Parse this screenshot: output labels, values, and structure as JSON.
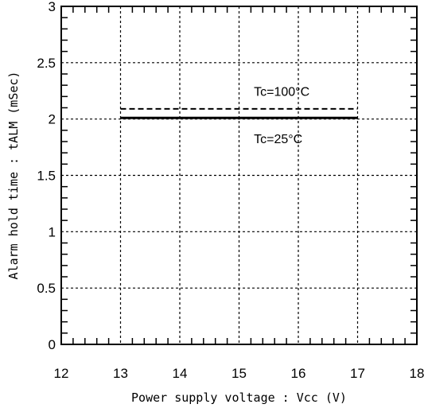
{
  "chart_data": {
    "type": "line",
    "title": "",
    "xlabel": "Power supply voltage : Vcc (V)",
    "ylabel": "Alarm hold time : tALM (mSec)",
    "xlim": [
      12,
      18
    ],
    "ylim": [
      0,
      3
    ],
    "xticks": [
      12,
      13,
      14,
      15,
      16,
      17,
      18
    ],
    "yticks": [
      0,
      0.5,
      1,
      1.5,
      2,
      2.5,
      3
    ],
    "xtick_labels": [
      "12",
      "13",
      "14",
      "15",
      "16",
      "17",
      "18"
    ],
    "ytick_labels": [
      "0",
      "0.5",
      "1",
      "1.5",
      "2",
      "2.5",
      "3"
    ],
    "grid": true,
    "series": [
      {
        "name": "Tc=100°C",
        "style": "dashed",
        "x": [
          13,
          17
        ],
        "y": [
          2.09,
          2.09
        ]
      },
      {
        "name": "Tc=25°C",
        "style": "solid",
        "x": [
          13,
          17
        ],
        "y": [
          2.01,
          2.01
        ]
      }
    ],
    "annotations": [
      {
        "text": "Tc=100°C",
        "x": 15.25,
        "y": 2.25
      },
      {
        "text": "Tc=25°C",
        "x": 15.25,
        "y": 1.83
      }
    ]
  }
}
